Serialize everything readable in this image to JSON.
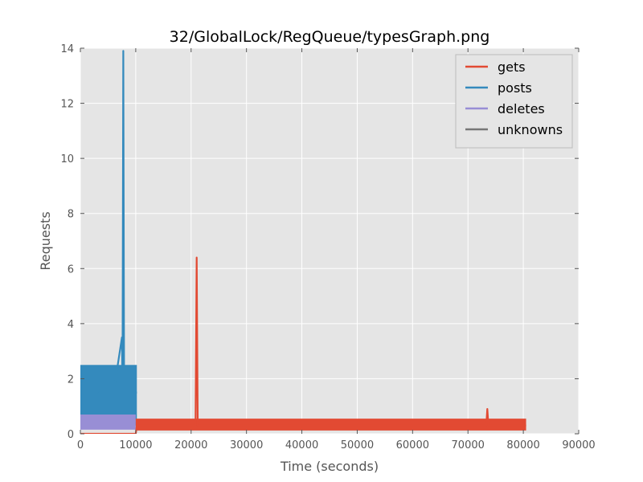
{
  "chart_data": {
    "type": "line",
    "title": "32/GlobalLock/RegQueue/typesGraph.png",
    "xlabel": "Time (seconds)",
    "ylabel": "Requests",
    "xlim": [
      0,
      90000
    ],
    "ylim": [
      0,
      14
    ],
    "x_ticks": [
      0,
      10000,
      20000,
      30000,
      40000,
      50000,
      60000,
      70000,
      80000,
      90000
    ],
    "y_ticks": [
      0,
      2,
      4,
      6,
      8,
      10,
      12,
      14
    ],
    "x_tick_labels": [
      "0",
      "10000",
      "20000",
      "30000",
      "40000",
      "50000",
      "60000",
      "70000",
      "80000",
      "90000"
    ],
    "y_tick_labels": [
      "0",
      "2",
      "4",
      "6",
      "8",
      "10",
      "12",
      "14"
    ],
    "grid": true,
    "background_color": "#e5e5e5",
    "legend": {
      "placement": "top-right"
    },
    "series": [
      {
        "name": "gets",
        "color": "#e24a33",
        "x": [
          0,
          10000,
          10200,
          20000,
          20800,
          21000,
          21200,
          22000,
          30000,
          40000,
          50000,
          60000,
          70000,
          73300,
          73500,
          73700,
          80000,
          80500
        ],
        "y": [
          0,
          0,
          0.3,
          0.3,
          0.3,
          6.4,
          0.3,
          0.3,
          0.3,
          0.3,
          0.3,
          0.3,
          0.3,
          0.3,
          0.9,
          0.3,
          0.3,
          0.3
        ]
      },
      {
        "name": "posts",
        "color": "#348abd",
        "x": [
          0,
          1000,
          2000,
          3000,
          3500,
          4000,
          5000,
          6000,
          7500,
          7600,
          7750,
          7900,
          9000,
          10000,
          10200
        ],
        "y": [
          1.5,
          1.5,
          1.5,
          1.5,
          1.6,
          1.5,
          1.5,
          1.5,
          3.5,
          1.5,
          13.9,
          1.5,
          1.5,
          1.5,
          1.5
        ]
      },
      {
        "name": "deletes",
        "color": "#988ed5",
        "x": [
          0,
          2000,
          4000,
          6000,
          8000,
          9000,
          10000
        ],
        "y": [
          0.45,
          0.45,
          0.45,
          0.45,
          0.45,
          0.5,
          0.45
        ]
      },
      {
        "name": "unknowns",
        "color": "#777777",
        "x": [],
        "y": []
      }
    ]
  }
}
